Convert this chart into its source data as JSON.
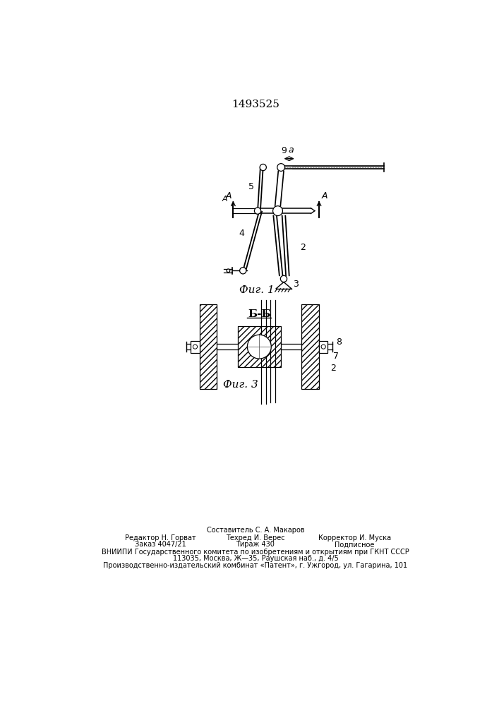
{
  "patent_number": "1493525",
  "bg_color": "#ffffff",
  "line_color": "#000000",
  "fig1_label": "Фиг. 1",
  "fig3_label": "Фиг. 3",
  "section_label": "Б-Б",
  "footer_line1": "Составитель С. А. Макаров",
  "footer_line2_left": "Редактор Н. Горват",
  "footer_line2_mid": "Техред И. Верес",
  "footer_line2_right": "Корректор И. Муска",
  "footer_line3_left": "Заказ 4047/21",
  "footer_line3_mid": "Тираж 430",
  "footer_line3_right": "Подписное",
  "footer_line4": "ВНИИПИ Государственного комитета по изобретениям и открытиям при ГКНТ СССР",
  "footer_line5": "113035, Москва, Ж—35, Раушская наб., д. 4/5",
  "footer_line6": "Производственно-издательский комбинат «Патент», г. Ужгород, ул. Гагарина, 101"
}
